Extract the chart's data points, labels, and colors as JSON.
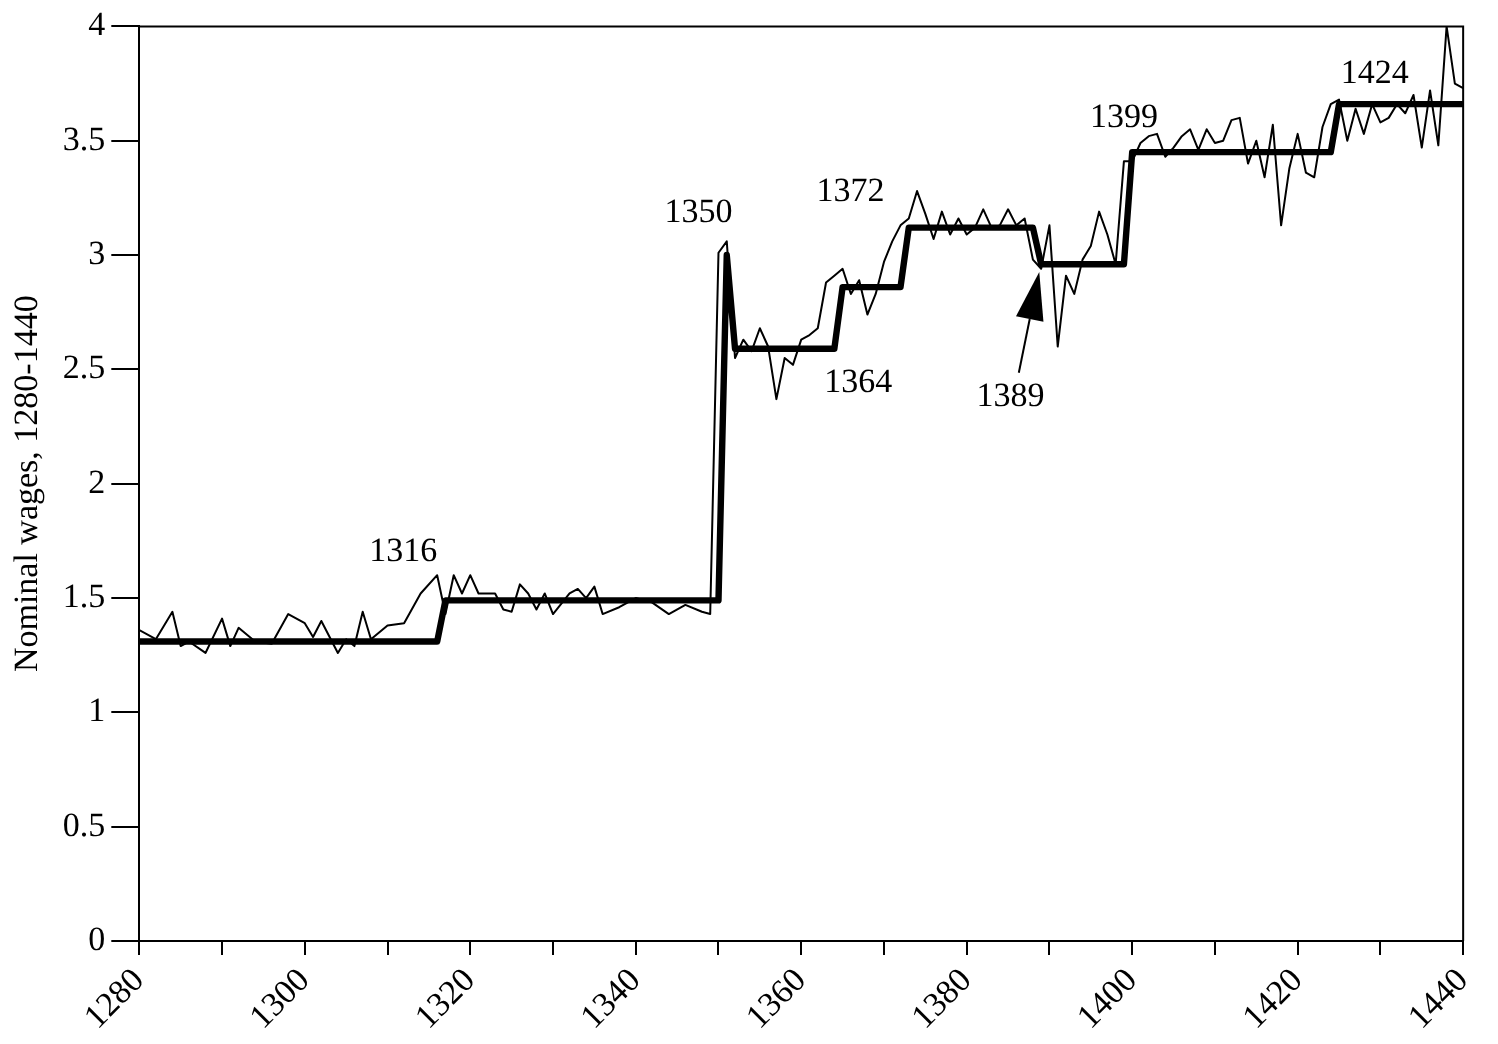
{
  "chart_data": {
    "type": "line",
    "ylabel": "Nominal wages, 1280-1440",
    "xlim": [
      1280,
      1440
    ],
    "xticks": [
      1280,
      {
        "value": 1290,
        "label": null
      },
      1300,
      {
        "value": 1310,
        "label": null
      },
      1320,
      {
        "value": 1330,
        "label": null
      },
      1340,
      {
        "value": 1350,
        "label": null
      },
      1360,
      {
        "value": 1370,
        "label": null
      },
      1380,
      {
        "value": 1390,
        "label": null
      },
      1400,
      {
        "value": 1410,
        "label": null
      },
      1420,
      {
        "value": 1430,
        "label": null
      },
      1440
    ],
    "ylim": [
      0,
      4
    ],
    "yticks": [
      0,
      0.5,
      1,
      1.5,
      2,
      2.5,
      3,
      3.5,
      4
    ],
    "grid": false,
    "legend": false,
    "marker": "none",
    "line_style": "solid",
    "series": [
      {
        "color": "#000000",
        "x": [
          1280,
          1282,
          1284,
          1285,
          1286,
          1288,
          1290,
          1291,
          1292,
          1294,
          1296,
          1298,
          1300,
          1301,
          1302,
          1304,
          1305,
          1306,
          1307,
          1308,
          1310,
          1312,
          1314,
          1316,
          1317,
          1318,
          1319,
          1320,
          1321,
          1323,
          1324,
          1325,
          1326,
          1327,
          1328,
          1329,
          1330,
          1332,
          1333,
          1334,
          1335,
          1336,
          1338,
          1340,
          1342,
          1344,
          1346,
          1348,
          1349,
          1350,
          1351,
          1352,
          1353,
          1354,
          1355,
          1356,
          1357,
          1358,
          1359,
          1360,
          1361,
          1362,
          1363,
          1364,
          1365,
          1366,
          1367,
          1368,
          1369,
          1370,
          1371,
          1372,
          1373,
          1374,
          1375,
          1376,
          1377,
          1378,
          1379,
          1380,
          1381,
          1382,
          1383,
          1384,
          1385,
          1386,
          1387,
          1388,
          1389,
          1390,
          1391,
          1392,
          1393,
          1394,
          1395,
          1396,
          1397,
          1398,
          1399,
          1400,
          1401,
          1402,
          1403,
          1404,
          1405,
          1406,
          1407,
          1408,
          1409,
          1410,
          1411,
          1412,
          1413,
          1414,
          1415,
          1416,
          1417,
          1418,
          1419,
          1420,
          1421,
          1422,
          1423,
          1424,
          1425,
          1426,
          1427,
          1428,
          1429,
          1430,
          1431,
          1432,
          1433,
          1434,
          1435,
          1436,
          1437,
          1438,
          1439,
          1440
        ],
        "values": [
          1.36,
          1.32,
          1.44,
          1.29,
          1.31,
          1.26,
          1.41,
          1.29,
          1.37,
          1.31,
          1.3,
          1.43,
          1.39,
          1.33,
          1.4,
          1.26,
          1.32,
          1.29,
          1.44,
          1.32,
          1.38,
          1.39,
          1.52,
          1.6,
          1.43,
          1.6,
          1.52,
          1.6,
          1.52,
          1.52,
          1.45,
          1.44,
          1.56,
          1.52,
          1.45,
          1.52,
          1.43,
          1.52,
          1.54,
          1.5,
          1.55,
          1.43,
          1.46,
          1.5,
          1.48,
          1.43,
          1.47,
          1.44,
          1.43,
          3.01,
          3.06,
          2.55,
          2.63,
          2.58,
          2.68,
          2.6,
          2.37,
          2.55,
          2.52,
          2.63,
          2.65,
          2.68,
          2.88,
          2.91,
          2.94,
          2.83,
          2.89,
          2.74,
          2.83,
          2.97,
          3.06,
          3.13,
          3.16,
          3.28,
          3.18,
          3.07,
          3.19,
          3.09,
          3.16,
          3.09,
          3.12,
          3.2,
          3.12,
          3.13,
          3.2,
          3.13,
          3.16,
          2.98,
          2.94,
          3.13,
          2.6,
          2.91,
          2.83,
          2.98,
          3.04,
          3.19,
          3.09,
          2.96,
          3.41,
          3.41,
          3.49,
          3.52,
          3.53,
          3.43,
          3.47,
          3.52,
          3.55,
          3.46,
          3.55,
          3.49,
          3.5,
          3.59,
          3.6,
          3.4,
          3.5,
          3.34,
          3.57,
          3.13,
          3.38,
          3.53,
          3.36,
          3.34,
          3.56,
          3.66,
          3.68,
          3.5,
          3.64,
          3.53,
          3.66,
          3.58,
          3.6,
          3.66,
          3.62,
          3.7,
          3.47,
          3.72,
          3.48,
          4.0,
          3.75,
          3.73
        ]
      },
      {
        "color": "#000000",
        "x": [
          1280,
          1316,
          1317,
          1350,
          1351,
          1352,
          1364,
          1365,
          1372,
          1373,
          1388,
          1389,
          1399,
          1400,
          1424,
          1425,
          1440
        ],
        "values": [
          1.31,
          1.31,
          1.49,
          1.49,
          3.0,
          2.59,
          2.59,
          2.86,
          2.86,
          3.12,
          3.12,
          2.96,
          2.96,
          3.45,
          3.45,
          3.66,
          3.66
        ]
      }
    ],
    "annotations": [
      {
        "text": "1316",
        "x": 1316,
        "y": 1.49
      },
      {
        "text": "1350",
        "x": 1350,
        "y": 3.0
      },
      {
        "text": "1364",
        "x": 1364,
        "y": 2.59
      },
      {
        "text": "1372",
        "x": 1372,
        "y": 3.12
      },
      "1389",
      {
        "text": "1399",
        "x": 1399,
        "y": 3.45
      },
      {
        "text": "1424",
        "x": 1424,
        "y": 3.66
      }
    ]
  }
}
